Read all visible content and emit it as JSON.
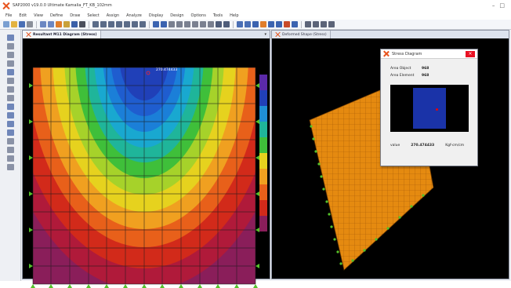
{
  "window": {
    "title": "SAP2000 v19.0.0 Ultimate  Kamalia_FT_KB_102mm"
  },
  "menu": [
    "File",
    "Edit",
    "View",
    "Define",
    "Draw",
    "Select",
    "Assign",
    "Analyze",
    "Display",
    "Design",
    "Options",
    "Tools",
    "Help"
  ],
  "panes": {
    "left": {
      "tab_label": "Resultant M11 Diagram  (Stress)",
      "max_label": "270.474433"
    },
    "right": {
      "tab_label": "Deformed Shape (Stress)"
    }
  },
  "dialog": {
    "title": "Stress Diagram",
    "area_object_label": "Area Object",
    "area_object_value": "968",
    "area_element_label": "Area Element",
    "area_element_value": "968",
    "value_label": "value",
    "value": "270.474433",
    "value_unit": "Kgf-cm/cm"
  },
  "colors": {
    "accent": "#e8541e",
    "viewport_bg": "#000000",
    "plate_fill": "#e58a10",
    "support_green": "#55c22a"
  },
  "icons": {
    "app": "sap2000-x-icon",
    "tab": "close-x-icon"
  }
}
